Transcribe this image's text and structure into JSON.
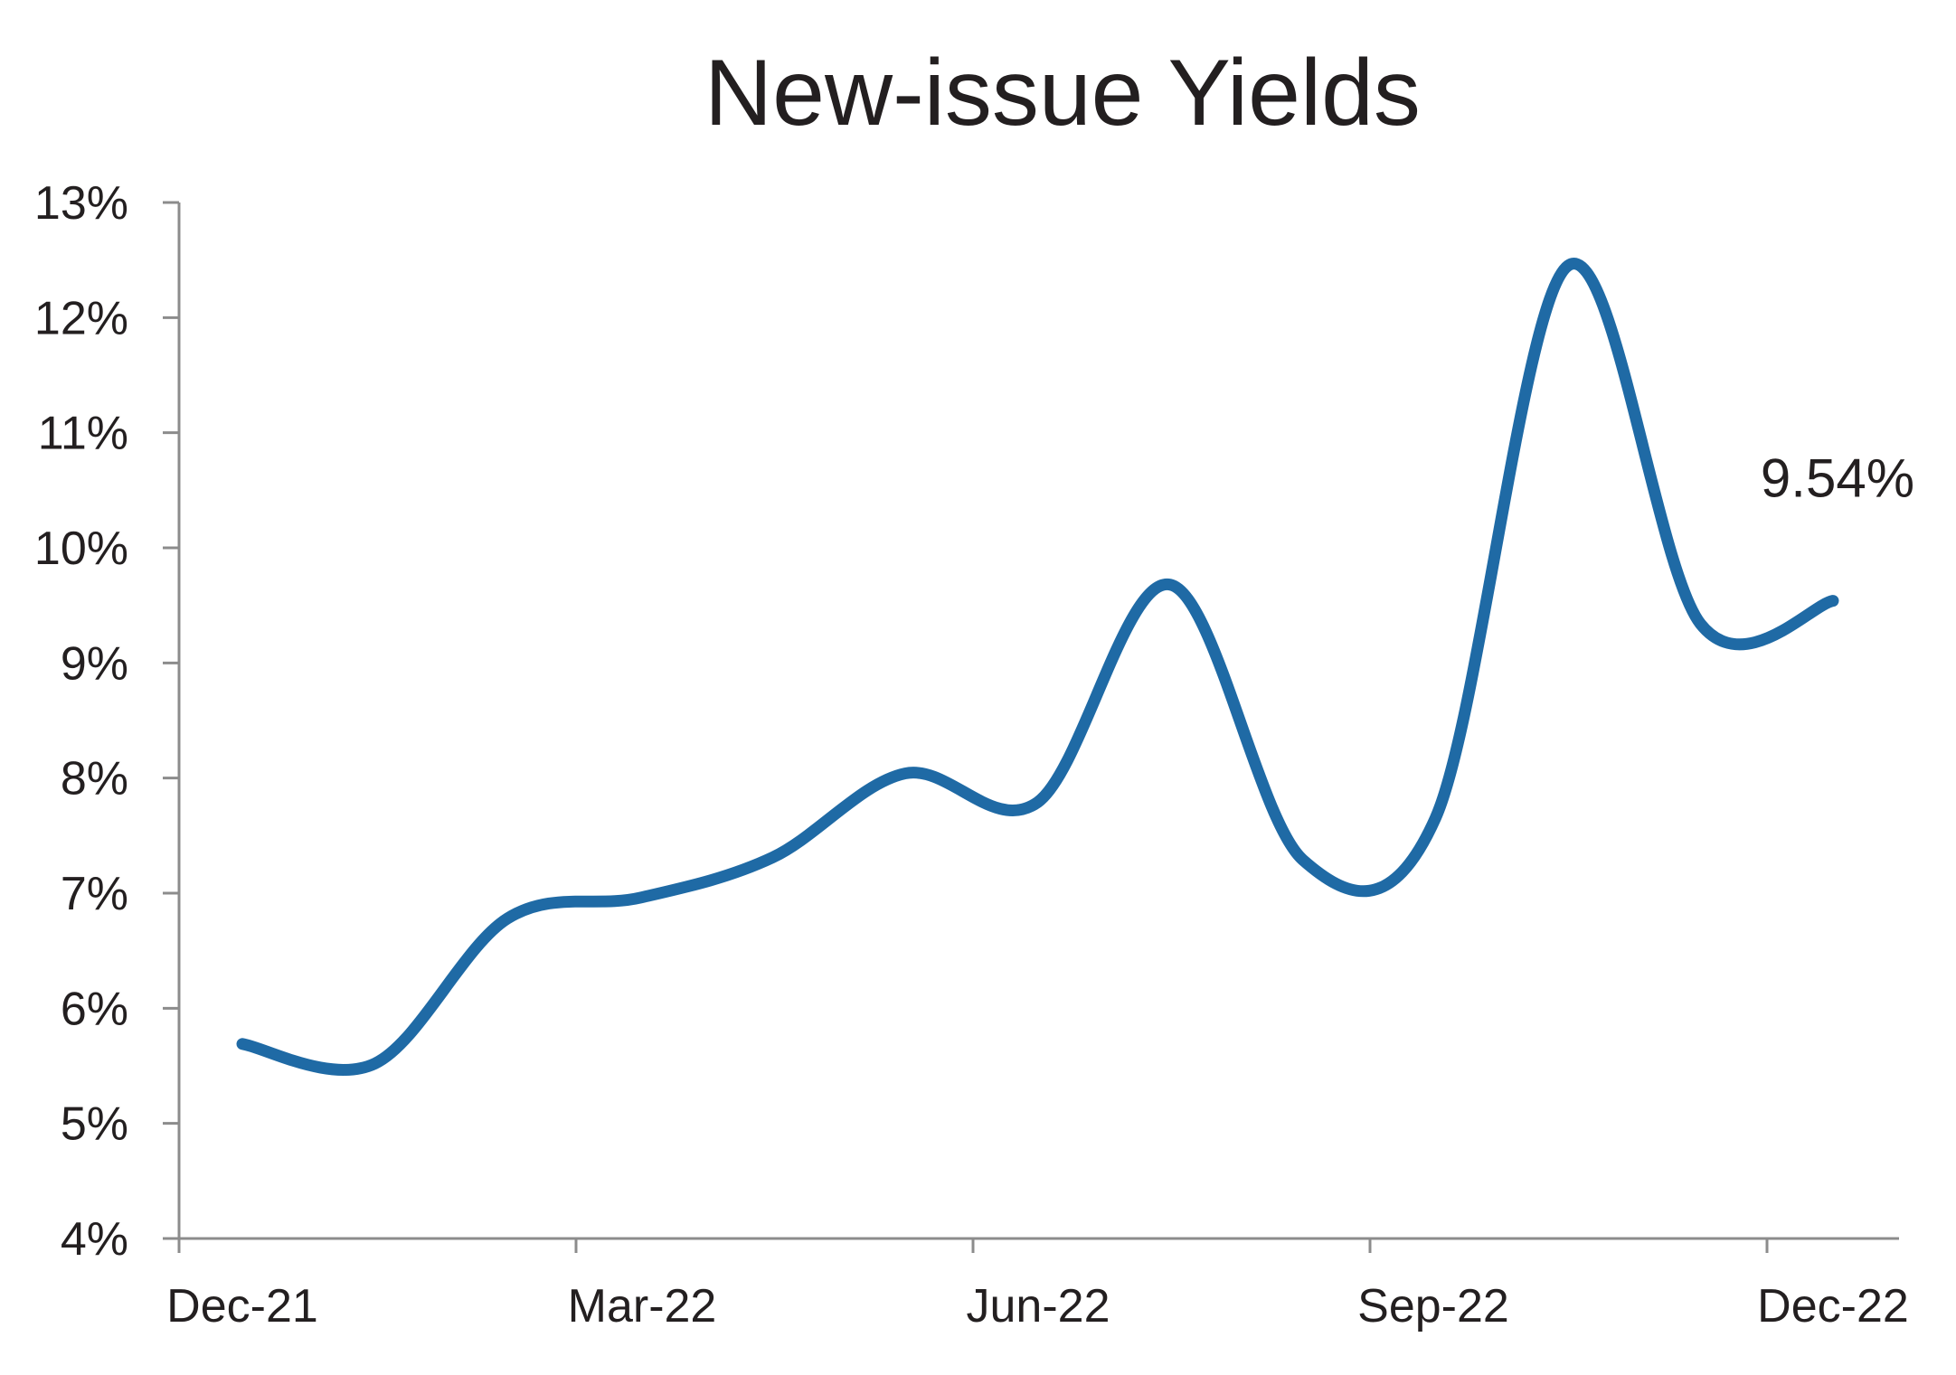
{
  "chart_data": {
    "type": "line",
    "title": "New-issue Yields",
    "xlabel": "",
    "ylabel": "",
    "x": [
      "Dec-21",
      "Jan-22",
      "Feb-22",
      "Mar-22",
      "Apr-22",
      "May-22",
      "Jun-22",
      "Jul-22",
      "Aug-22",
      "Sep-22",
      "Oct-22",
      "Nov-22",
      "Dec-22"
    ],
    "x_tick_labels": [
      "Dec-21",
      "Mar-22",
      "Jun-22",
      "Sep-22",
      "Dec-22"
    ],
    "y_tick_labels": [
      "4%",
      "5%",
      "6%",
      "7%",
      "8%",
      "9%",
      "10%",
      "11%",
      "12%",
      "13%"
    ],
    "ylim": [
      4,
      13
    ],
    "series": [
      {
        "color": "#1f6aa5",
        "values": [
          5.69,
          5.52,
          6.78,
          6.96,
          7.31,
          8.04,
          7.79,
          9.68,
          7.29,
          7.65,
          12.45,
          9.34,
          9.54
        ]
      }
    ],
    "annotations": [
      {
        "point_index": 12,
        "text": "9.54%"
      }
    ],
    "grid": false,
    "legend": "none"
  }
}
